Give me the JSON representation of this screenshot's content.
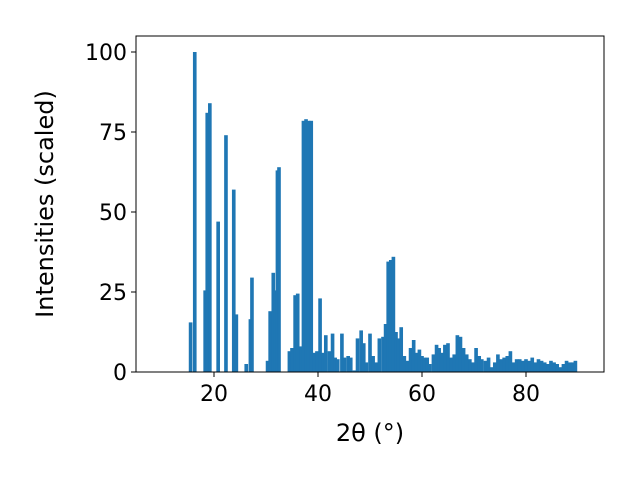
{
  "chart_data": {
    "type": "bar",
    "xlabel": "2θ (°)",
    "ylabel": "Intensities (scaled)",
    "xlim": [
      5,
      95
    ],
    "ylim": [
      0,
      105
    ],
    "xticks": [
      20,
      40,
      60,
      80
    ],
    "yticks": [
      0,
      25,
      50,
      75,
      100
    ],
    "bar_color": "#1f77b4",
    "bar_width": 0.7,
    "x": [
      15.5,
      16.3,
      18.3,
      18.7,
      19.2,
      20.8,
      22.3,
      23.8,
      24.3,
      26.2,
      27.0,
      27.3,
      30.3,
      30.8,
      31.4,
      31.8,
      32.2,
      32.5,
      34.5,
      35.0,
      35.6,
      36.1,
      36.7,
      37.2,
      37.7,
      38.2,
      38.7,
      39.2,
      39.8,
      40.4,
      41.0,
      41.5,
      42.2,
      42.8,
      43.3,
      43.8,
      44.6,
      45.1,
      45.8,
      46.3,
      47.0,
      47.6,
      48.3,
      48.8,
      49.3,
      50.0,
      50.6,
      51.2,
      51.8,
      52.5,
      53.0,
      53.5,
      54.0,
      54.5,
      55.0,
      55.5,
      56.0,
      56.6,
      57.2,
      57.8,
      58.4,
      59.0,
      59.5,
      60.0,
      60.5,
      61.0,
      61.5,
      62.2,
      62.8,
      63.3,
      63.8,
      64.4,
      65.0,
      65.6,
      66.2,
      66.8,
      67.4,
      68.0,
      68.6,
      69.2,
      69.8,
      70.4,
      71.0,
      71.5,
      72.2,
      72.8,
      73.4,
      74.0,
      74.6,
      75.2,
      75.8,
      76.4,
      77.0,
      77.6,
      78.2,
      78.8,
      79.4,
      80.0,
      80.6,
      81.2,
      81.8,
      82.4,
      83.0,
      83.6,
      84.2,
      84.8,
      85.4,
      86.0,
      86.6,
      87.2,
      87.8,
      88.4,
      89.0,
      89.5
    ],
    "values": [
      15.5,
      100,
      25.5,
      81,
      84,
      47,
      74,
      57,
      18,
      2.5,
      16.5,
      29.5,
      3.5,
      19,
      31,
      25.5,
      63,
      64,
      6.5,
      7.5,
      24,
      24.5,
      8,
      78.5,
      79,
      78.5,
      78.5,
      6,
      6.5,
      23,
      6,
      11.5,
      6.5,
      12,
      4.5,
      4,
      12,
      4.5,
      5,
      4.5,
      0.5,
      10.5,
      13,
      9,
      3,
      12,
      5,
      3,
      10.5,
      11,
      15,
      34.5,
      35,
      36,
      12.5,
      10.5,
      14,
      5,
      3.5,
      7.5,
      10,
      6,
      7,
      5,
      4.5,
      4.5,
      2.5,
      5.5,
      8.5,
      7.5,
      6,
      8.5,
      9,
      4.5,
      5.5,
      11.5,
      11,
      7.5,
      5.5,
      4,
      3,
      7.5,
      5,
      4,
      3.5,
      4.5,
      1.5,
      3,
      5.5,
      4,
      4.5,
      5,
      6.5,
      3,
      4,
      4,
      3.5,
      4,
      3.5,
      4.5,
      3,
      4,
      3.5,
      3,
      2.5,
      3.5,
      3,
      2.5,
      1.5,
      2.5,
      3.5,
      3,
      3,
      3.5
    ]
  }
}
